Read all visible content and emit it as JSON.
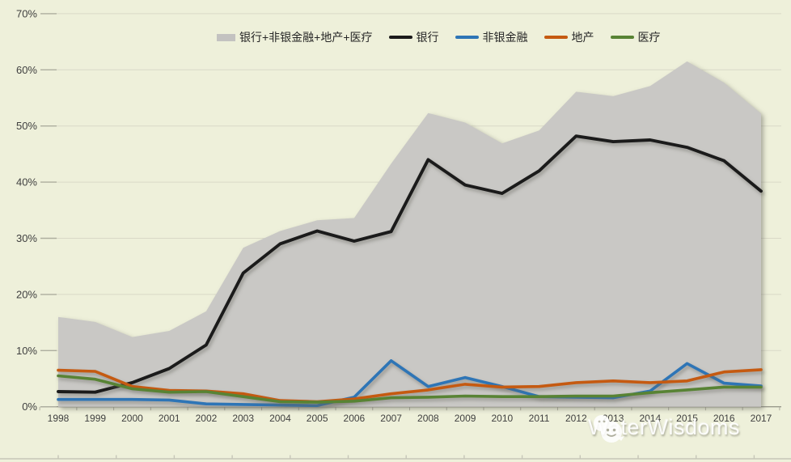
{
  "chart_data": {
    "type": "area",
    "title": "",
    "x": [
      "1998",
      "1999",
      "2000",
      "2001",
      "2002",
      "2003",
      "2004",
      "2005",
      "2006",
      "2007",
      "2008",
      "2009",
      "2010",
      "2011",
      "2012",
      "2013",
      "2014",
      "2015",
      "2016",
      "2017"
    ],
    "series": [
      {
        "key": "total",
        "name": "银行+非银金融+地产+医疗",
        "kind": "area",
        "color": "#c9c8c5",
        "values": [
          16.0,
          15.1,
          12.4,
          13.5,
          17.0,
          28.3,
          31.3,
          33.2,
          33.6,
          43.3,
          52.3,
          50.6,
          46.9,
          49.2,
          56.1,
          55.3,
          57.1,
          61.5,
          57.7,
          52.2
        ]
      },
      {
        "key": "bank",
        "name": "银行",
        "kind": "line",
        "color": "#1b1b1b",
        "values": [
          2.7,
          2.6,
          4.3,
          6.8,
          11.0,
          23.8,
          29.0,
          31.3,
          29.5,
          31.2,
          44.0,
          39.5,
          38.0,
          42.0,
          48.2,
          47.2,
          47.5,
          46.2,
          43.8,
          38.4
        ]
      },
      {
        "key": "nonbank-finance",
        "name": "非银金融",
        "kind": "line",
        "color": "#2e75b6",
        "values": [
          1.3,
          1.3,
          1.3,
          1.2,
          0.5,
          0.4,
          0.3,
          0.2,
          1.7,
          8.2,
          3.6,
          5.2,
          3.6,
          1.8,
          1.7,
          1.6,
          2.8,
          7.7,
          4.2,
          3.7
        ]
      },
      {
        "key": "real-estate",
        "name": "地产",
        "kind": "line",
        "color": "#c55a11",
        "values": [
          6.5,
          6.3,
          3.6,
          2.9,
          2.8,
          2.3,
          1.1,
          0.9,
          1.4,
          2.3,
          3.0,
          4.0,
          3.5,
          3.6,
          4.3,
          4.6,
          4.3,
          4.6,
          6.2,
          6.6
        ]
      },
      {
        "key": "healthcare",
        "name": "医疗",
        "kind": "line",
        "color": "#588334",
        "values": [
          5.5,
          4.9,
          3.2,
          2.6,
          2.7,
          1.8,
          0.9,
          0.8,
          1.0,
          1.6,
          1.7,
          1.9,
          1.8,
          1.8,
          1.9,
          1.9,
          2.5,
          3.0,
          3.5,
          3.5
        ]
      }
    ],
    "ylim": [
      0,
      70
    ],
    "ytick_labels": [
      "0%",
      "10%",
      "20%",
      "30%",
      "40%",
      "50%",
      "60%",
      "70%"
    ],
    "grid": true,
    "legend_position": "top"
  },
  "watermark": {
    "text": "WaterWisdoms"
  },
  "colors": {
    "background": "#eef0da",
    "gridline": "#d9d9c7",
    "axis_line": "#9a9a8c",
    "tick": "#aeae9f",
    "label": "#3f3f3f",
    "ruler": "#c6c6b8"
  }
}
